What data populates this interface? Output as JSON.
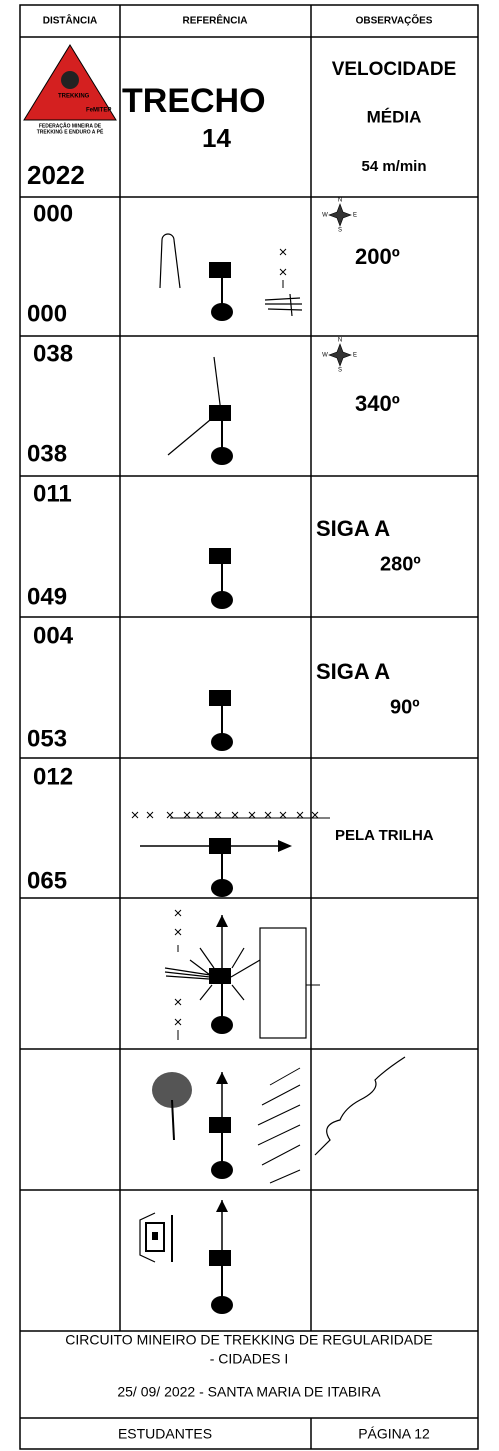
{
  "header": {
    "columns": [
      "DISTÂNCIA",
      "REFERÊNCIA",
      "OBSERVAÇÕES"
    ]
  },
  "intro": {
    "logo": {
      "title": "TREKKING",
      "brand": "FeMITEP",
      "caption": [
        "FEDERAÇÃO MINEIRA DE",
        "TREKKING E ENDURO A PÉ"
      ]
    },
    "year": "2022",
    "reference": [
      "TRECHO",
      "14"
    ],
    "observations": [
      "VELOCIDADE",
      "MÉDIA",
      "54 m/min"
    ]
  },
  "compass": {
    "n": "N",
    "w": "W",
    "e": "E",
    "s": "S"
  },
  "rows": [
    {
      "distance_top": "000",
      "distance_bottom": "000",
      "observation": [
        "200º"
      ]
    },
    {
      "distance_top": "038",
      "distance_bottom": "038",
      "observation": [
        "340º"
      ]
    },
    {
      "distance_top": "011",
      "distance_bottom": "049",
      "observation": [
        "SIGA A",
        "280º"
      ]
    },
    {
      "distance_top": "004",
      "distance_bottom": "053",
      "observation": [
        "SIGA A",
        "90º"
      ]
    },
    {
      "distance_top": "012",
      "distance_bottom": "065",
      "observation": [
        "PELA TRILHA"
      ]
    }
  ],
  "footer": {
    "lines": [
      "CIRCUITO MINEIRO DE TREKKING DE REGULARIDADE",
      "- CIDADES I"
    ],
    "date": "25/ 09/ 2022  - SANTA MARIA DE ITABIRA",
    "left": "ESTUDANTES",
    "right": "PÁGINA 12"
  }
}
